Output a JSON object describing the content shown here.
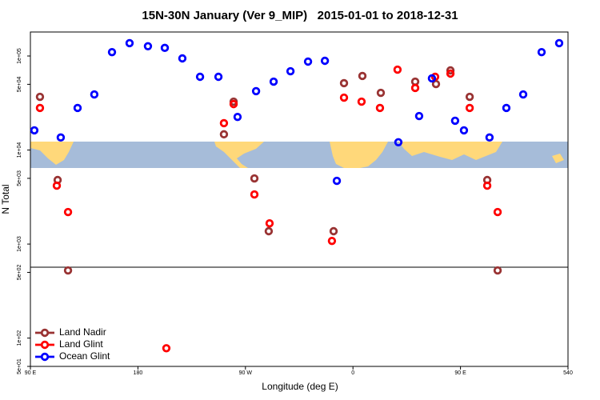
{
  "chart_data": {
    "type": "scatter",
    "title": "15N-30N January (Ver 9_MIP)   2015-01-01 to 2018-12-31",
    "x_label": "Longitude (deg E)",
    "y_label": "N Total",
    "xlim": [
      90,
      540
    ],
    "xticks": [
      {
        "value": 90,
        "label": "90 E"
      },
      180,
      {
        "value": 270,
        "label": "90 W"
      },
      {
        "value": 360,
        "label": "0"
      },
      {
        "value": 450,
        "label": "90 E"
      },
      540
    ],
    "ylim": [
      50,
      180000
    ],
    "log_y": true,
    "yticks": [
      {
        "value": 50,
        "label": "5e+01"
      },
      {
        "value": 100,
        "label": "1e+02"
      },
      {
        "value": 500,
        "label": "5e+02"
      },
      {
        "value": 1000,
        "label": "1e+03"
      },
      {
        "value": 5000,
        "label": "5e+03"
      },
      {
        "value": 10000,
        "label": "1e+04"
      },
      {
        "value": 50000,
        "label": "5e+04"
      },
      {
        "value": 100000,
        "label": "1e+05"
      }
    ],
    "legend": "bottom-left",
    "series": [
      {
        "name": "Land Nadir",
        "color": "#993333",
        "x": [
          98.0,
          112.8,
          121.5,
          252.0,
          260.1,
          277.5,
          289.5,
          343.8,
          352.5,
          367.9,
          383.3,
          412.1,
          429.5,
          441.6,
          457.7,
          472.4,
          481.1
        ],
        "values": [
          36800,
          4800,
          524,
          14700,
          32700,
          4990,
          1370,
          1370,
          51400,
          61300,
          40600,
          53400,
          50300,
          70300,
          36800,
          4800,
          524
        ]
      },
      {
        "name": "Land Glint",
        "color": "#ff0000",
        "x": [
          98.0,
          112.1,
          121.5,
          203.8,
          252.0,
          260.1,
          277.5,
          290.2,
          342.4,
          352.5,
          367.2,
          382.6,
          412.1,
          428.8,
          441.6,
          397.3,
          457.7,
          472.4,
          481.1
        ],
        "values": [
          28000,
          4180,
          2190,
          78,
          19300,
          30800,
          3370,
          1660,
          1080,
          36100,
          32700,
          28000,
          45700,
          60100,
          65000,
          71600,
          28000,
          4180,
          2190
        ]
      },
      {
        "name": "Ocean Glint",
        "color": "#0000ff",
        "x": [
          93.3,
          115.4,
          129.5,
          143.5,
          158.3,
          173.0,
          188.4,
          202.5,
          217.2,
          232.0,
          247.4,
          263.4,
          278.9,
          293.6,
          307.7,
          322.4,
          336.5,
          346.5,
          398.0,
          415.4,
          426.1,
          445.5,
          452.9,
          474.3,
          488.4,
          502.5,
          517.9,
          532.6
        ],
        "values": [
          16200,
          13600,
          28000,
          39000,
          110000,
          137000,
          127000,
          122000,
          94300,
          60100,
          60100,
          22500,
          42300,
          53400,
          68900,
          87200,
          88900,
          4700,
          12100,
          23000,
          57800,
          20500,
          16200,
          13600,
          28000,
          39000,
          110000,
          137000
        ]
      }
    ]
  }
}
